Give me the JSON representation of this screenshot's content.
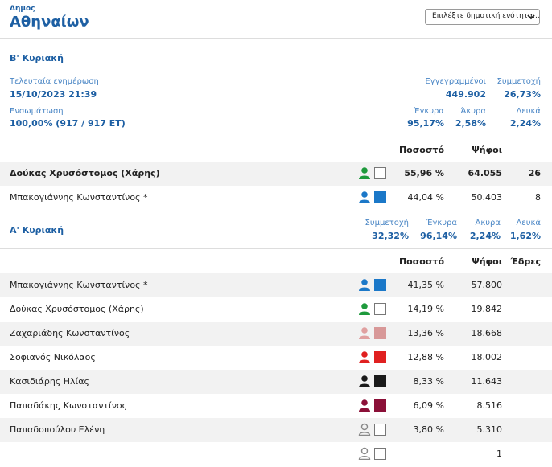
{
  "header": {
    "municipality_label": "Δημος",
    "municipality_name": "Αθηναίων",
    "unit_select_value": "Επιλέξτε δημοτική ενότητα..."
  },
  "round2": {
    "title": "Β' Κυριακή",
    "last_update_label": "Τελευταία ενημέρωση",
    "last_update_value": "15/10/2023 21:39",
    "integration_label": "Ενσωμάτωση",
    "integration_value": "100,00% (917 / 917 ΕΤ)",
    "registered_label": "Εγγεγραμμένοι",
    "registered_value": "449.902",
    "turnout_label": "Συμμετοχή",
    "turnout_value": "26,73%",
    "valid_label": "Έγκυρα",
    "valid_value": "95,17%",
    "invalid_label": "Άκυρα",
    "invalid_value": "2,58%",
    "blank_label": "Λευκά",
    "blank_value": "2,24%",
    "col_percent": "Ποσοστό",
    "col_votes": "Ψήφοι",
    "candidates": [
      {
        "name": "Δούκας Χρυσόστομος (Χάρης)",
        "percent": "55,96 %",
        "votes": "64.055",
        "seats": "26",
        "person_color": "#1e9a3c",
        "swatch_color": "",
        "bold": true
      },
      {
        "name": "Μπακογιάννης Κωνσταντίνος *",
        "percent": "44,04 %",
        "votes": "50.403",
        "seats": "8",
        "person_color": "#1b78c8",
        "swatch_color": "#1b78c8",
        "bold": false
      }
    ]
  },
  "round1": {
    "title": "Α' Κυριακή",
    "turnout_label": "Συμμετοχή",
    "turnout_value": "32,32%",
    "valid_label": "Έγκυρα",
    "valid_value": "96,14%",
    "invalid_label": "Άκυρα",
    "invalid_value": "2,24%",
    "blank_label": "Λευκά",
    "blank_value": "1,62%",
    "col_percent": "Ποσοστό",
    "col_votes": "Ψήφοι",
    "col_seats": "Έδρες",
    "candidates": [
      {
        "name": "Μπακογιάννης Κωνσταντίνος *",
        "percent": "41,35 %",
        "votes": "57.800",
        "seats": "",
        "person_color": "#1b78c8",
        "swatch_color": "#1b78c8"
      },
      {
        "name": "Δούκας Χρυσόστομος (Χάρης)",
        "percent": "14,19 %",
        "votes": "19.842",
        "seats": "",
        "person_color": "#1e9a3c",
        "swatch_color": ""
      },
      {
        "name": "Ζαχαριάδης Κωνσταντίνος",
        "percent": "13,36 %",
        "votes": "18.668",
        "seats": "",
        "person_color": "#e0a0a0",
        "swatch_color": "#d89898"
      },
      {
        "name": "Σοφιανός Νικόλαος",
        "percent": "12,88 %",
        "votes": "18.002",
        "seats": "",
        "person_color": "#e02020",
        "swatch_color": "#e02020"
      },
      {
        "name": "Κασιδιάρης Ηλίας",
        "percent": "8,33 %",
        "votes": "11.643",
        "seats": "",
        "person_color": "#1a1a1a",
        "swatch_color": "#1a1a1a"
      },
      {
        "name": "Παπαδάκης Κωνσταντίνος",
        "percent": "6,09 %",
        "votes": "8.516",
        "seats": "",
        "person_color": "#8b1038",
        "swatch_color": "#8b1038"
      },
      {
        "name": "Παπαδοπούλου Ελένη",
        "percent": "3,80 %",
        "votes": "5.310",
        "seats": "",
        "person_color": "outline",
        "swatch_color": ""
      },
      {
        "name": "",
        "percent": "",
        "votes": "1",
        "seats": "",
        "person_color": "outline",
        "swatch_color": ""
      }
    ]
  }
}
